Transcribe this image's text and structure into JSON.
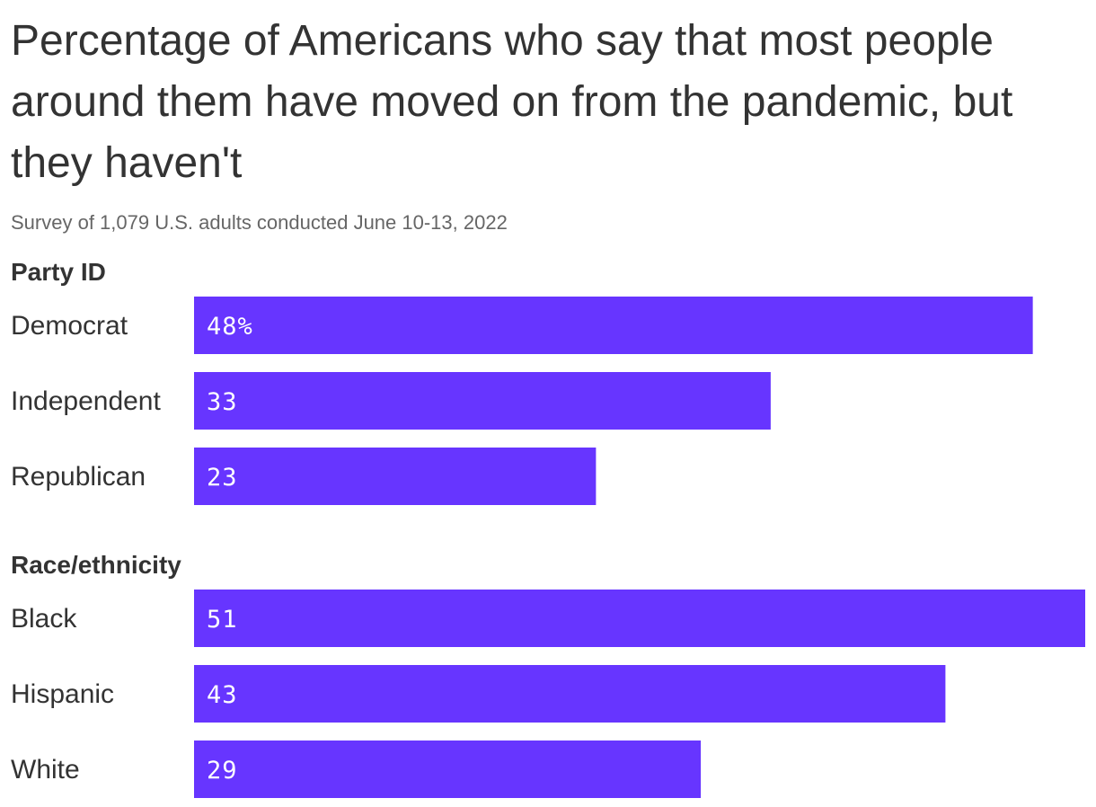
{
  "title": "Percentage of Americans who say that most people around them have moved on from the pandemic, but they haven't",
  "subtitle": "Survey of 1,079 U.S. adults conducted June 10-13, 2022",
  "colors": {
    "bar": "#6735ff",
    "text": "#333333",
    "subtitle": "#666666"
  },
  "chart_data": {
    "type": "bar",
    "orientation": "horizontal",
    "xlim": [
      0,
      51
    ],
    "grid": false,
    "groups": [
      {
        "name": "Party ID",
        "categories": [
          "Democrat",
          "Independent",
          "Republican"
        ],
        "values": [
          48,
          33,
          23
        ],
        "labels": [
          "48%",
          "33",
          "23"
        ]
      },
      {
        "name": "Race/ethnicity",
        "categories": [
          "Black",
          "Hispanic",
          "White"
        ],
        "values": [
          51,
          43,
          29
        ],
        "labels": [
          "51",
          "43",
          "29"
        ]
      }
    ]
  }
}
